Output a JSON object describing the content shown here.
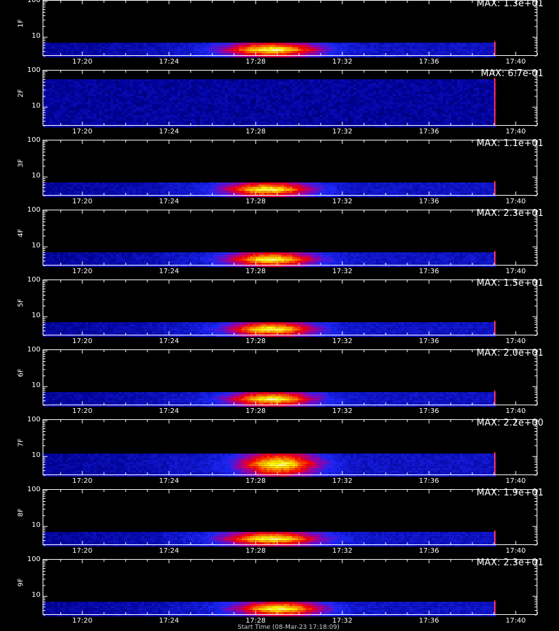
{
  "chart_data": {
    "type": "heatmap",
    "x_ticks": [
      "17:20",
      "17:24",
      "17:28",
      "17:32",
      "17:36",
      "17:40"
    ],
    "y_ticks": [
      "10",
      "100"
    ],
    "x_range": [
      "17:18:10",
      "17:41:00"
    ],
    "data_end": "17:39:00",
    "panels": [
      {
        "ylabel": "1F",
        "max_label": "MAX: 1.3e+01",
        "max_value": 13.0,
        "peak_time": "17:28:40",
        "peak_spread_min": 2.2,
        "band_top": 7
      },
      {
        "ylabel": "2F",
        "max_label": "MAX: 6.7e-01",
        "max_value": 0.67,
        "peak_time": "17:28:40",
        "peak_spread_min": 0.0,
        "band_top": 60
      },
      {
        "ylabel": "3F",
        "max_label": "MAX: 1.1e+01",
        "max_value": 11.0,
        "peak_time": "17:28:30",
        "peak_spread_min": 2.0,
        "band_top": 7
      },
      {
        "ylabel": "4F",
        "max_label": "MAX: 2.3e+01",
        "max_value": 23.0,
        "peak_time": "17:28:40",
        "peak_spread_min": 2.0,
        "band_top": 7
      },
      {
        "ylabel": "5F",
        "max_label": "MAX: 1.5e+01",
        "max_value": 15.0,
        "peak_time": "17:28:40",
        "peak_spread_min": 2.0,
        "band_top": 7
      },
      {
        "ylabel": "6F",
        "max_label": "MAX: 2.0e+01",
        "max_value": 20.0,
        "peak_time": "17:28:40",
        "peak_spread_min": 2.0,
        "band_top": 7
      },
      {
        "ylabel": "7F",
        "max_label": "MAX: 2.2e+00",
        "max_value": 2.2,
        "peak_time": "17:29:00",
        "peak_spread_min": 1.8,
        "band_top": 12
      },
      {
        "ylabel": "8F",
        "max_label": "MAX: 1.9e+01",
        "max_value": 19.0,
        "peak_time": "17:28:40",
        "peak_spread_min": 2.2,
        "band_top": 7
      },
      {
        "ylabel": "9F",
        "max_label": "MAX: 2.3e+01",
        "max_value": 23.0,
        "peak_time": "17:29:00",
        "peak_spread_min": 2.0,
        "band_top": 7
      }
    ],
    "colormap": [
      "#000000",
      "#0000aa",
      "#2222ff",
      "#aa00aa",
      "#ff0000",
      "#ff8800",
      "#ffff00",
      "#ffffff"
    ]
  },
  "xaxis_title": "Start Time (08-Mar-23 17:18:09)"
}
